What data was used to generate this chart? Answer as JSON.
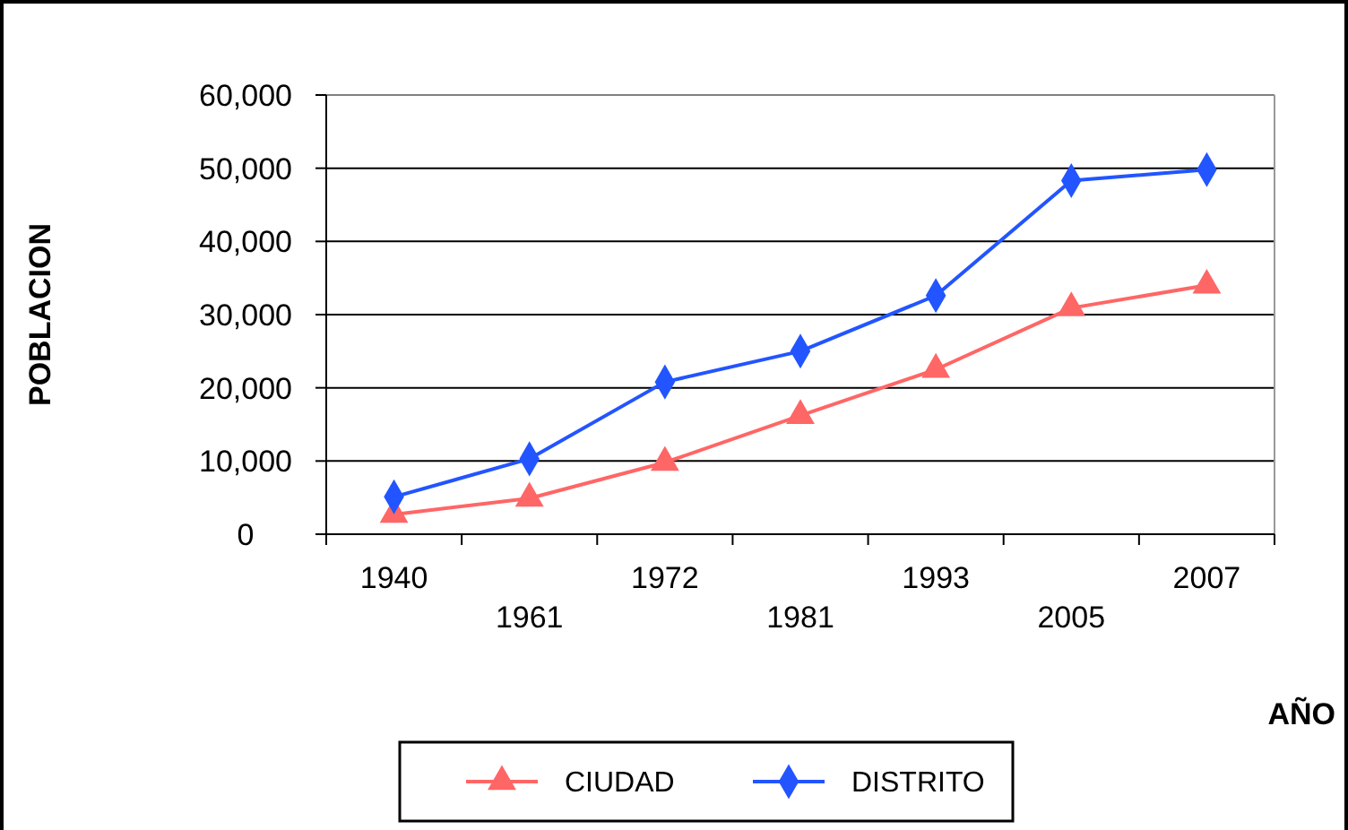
{
  "chart_data": {
    "type": "line",
    "xlabel": "AÑO",
    "ylabel": "POBLACION",
    "categories": [
      "1940",
      "1961",
      "1972",
      "1981",
      "1993",
      "2005",
      "2007"
    ],
    "series": [
      {
        "name": "CIUDAD",
        "color": "#ff6666",
        "marker": "triangle",
        "values": [
          2700,
          4900,
          9800,
          16200,
          22500,
          30900,
          34000
        ]
      },
      {
        "name": "DISTRITO",
        "color": "#2255ff",
        "marker": "diamond",
        "values": [
          5100,
          10300,
          20800,
          25000,
          32600,
          48300,
          49800
        ]
      }
    ],
    "ylim": [
      0,
      60000
    ],
    "yticks": [
      {
        "value": 0,
        "label": "0"
      },
      {
        "value": 10000,
        "label": "10,000"
      },
      {
        "value": 20000,
        "label": "20,000"
      },
      {
        "value": 30000,
        "label": "30,000"
      },
      {
        "value": 40000,
        "label": "40,000"
      },
      {
        "value": 50000,
        "label": "50,000"
      },
      {
        "value": 60000,
        "label": "60,000"
      }
    ],
    "grid": "y",
    "legend": "bottom"
  }
}
